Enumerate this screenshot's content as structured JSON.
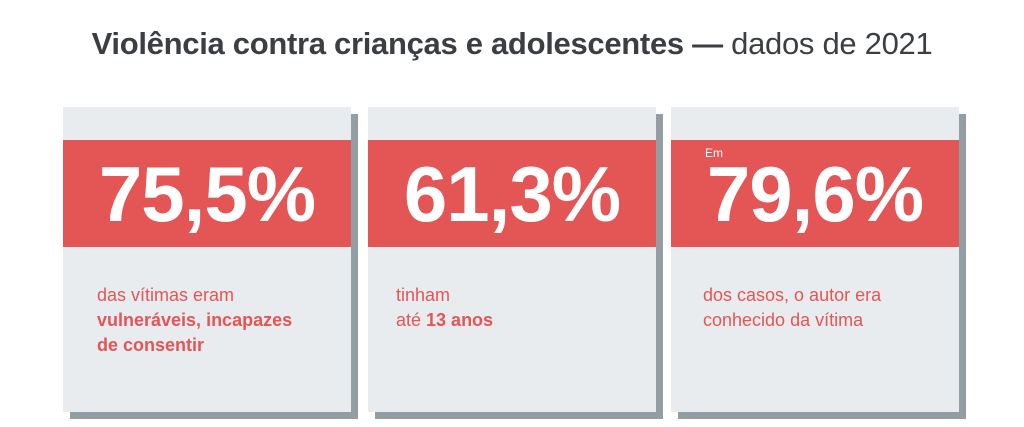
{
  "title": {
    "bold": "Violência contra crianças e adolescentes —",
    "light": "dados de 2021"
  },
  "cards": [
    {
      "prefix": "",
      "value": "75,5%",
      "line1": "das vítimas eram",
      "line2": "vulneráveis, incapazes",
      "line3": "de consentir"
    },
    {
      "prefix": "",
      "value": "61,3%",
      "line1": "tinham",
      "line2_plain": "até ",
      "line2_bold": "13 anos"
    },
    {
      "prefix": "Em",
      "value": "79,6%",
      "line1": "dos casos, o autor era",
      "line2": "conhecido da vítima"
    }
  ],
  "colors": {
    "accent": "#e45556",
    "card_background": "#e9ecee",
    "card_shadow": "#939da4",
    "title_text": "#3b3f44"
  }
}
